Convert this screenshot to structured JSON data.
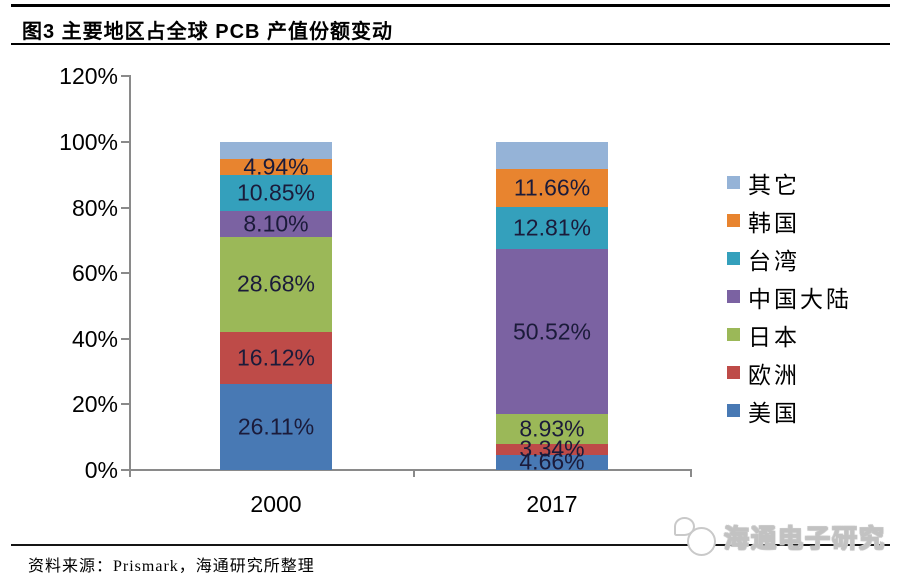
{
  "header": {
    "title": "图3  主要地区占全球 PCB 产值份额变动"
  },
  "chart_data": {
    "type": "bar",
    "stacked": true,
    "title": "图3  主要地区占全球 PCB 产值份额变动",
    "categories": [
      "2000",
      "2017"
    ],
    "series": [
      {
        "name": "美国",
        "color": "#4879B4",
        "values": [
          26.11,
          4.66
        ],
        "labels": [
          "26.11%",
          "4.66%"
        ]
      },
      {
        "name": "欧洲",
        "color": "#BE4B48",
        "values": [
          16.12,
          3.34
        ],
        "labels": [
          "16.12%",
          "3.34%"
        ]
      },
      {
        "name": "日本",
        "color": "#9BB858",
        "values": [
          28.68,
          8.93
        ],
        "labels": [
          "28.68%",
          "8.93%"
        ]
      },
      {
        "name": "中国大陆",
        "color": "#7B62A2",
        "values": [
          8.1,
          50.52
        ],
        "labels": [
          "8.10%",
          "50.52%"
        ]
      },
      {
        "name": "台湾",
        "color": "#34A0BC",
        "values": [
          10.85,
          12.81
        ],
        "labels": [
          "10.85%",
          "12.81%"
        ]
      },
      {
        "name": "韩国",
        "color": "#E8842F",
        "values": [
          4.94,
          11.66
        ],
        "labels": [
          "4.94%",
          "11.66%"
        ]
      },
      {
        "name": "其它",
        "color": "#95B3D7",
        "values": [
          5.2,
          8.08
        ],
        "labels": [
          "",
          ""
        ]
      }
    ],
    "legend_position": "right",
    "legend_order_top_to_bottom": [
      "其它",
      "韩国",
      "台湾",
      "中国大陆",
      "日本",
      "欧洲",
      "美国"
    ],
    "yticks": [
      "0%",
      "20%",
      "40%",
      "60%",
      "80%",
      "100%",
      "120%"
    ],
    "ylim": [
      0,
      120
    ],
    "grid": false,
    "xlabel": "",
    "ylabel": ""
  },
  "footer": {
    "source": "资料来源：Prismark，海通研究所整理",
    "watermark": "海通电子研究",
    "logo_icon": "speech-bubbles-icon"
  }
}
